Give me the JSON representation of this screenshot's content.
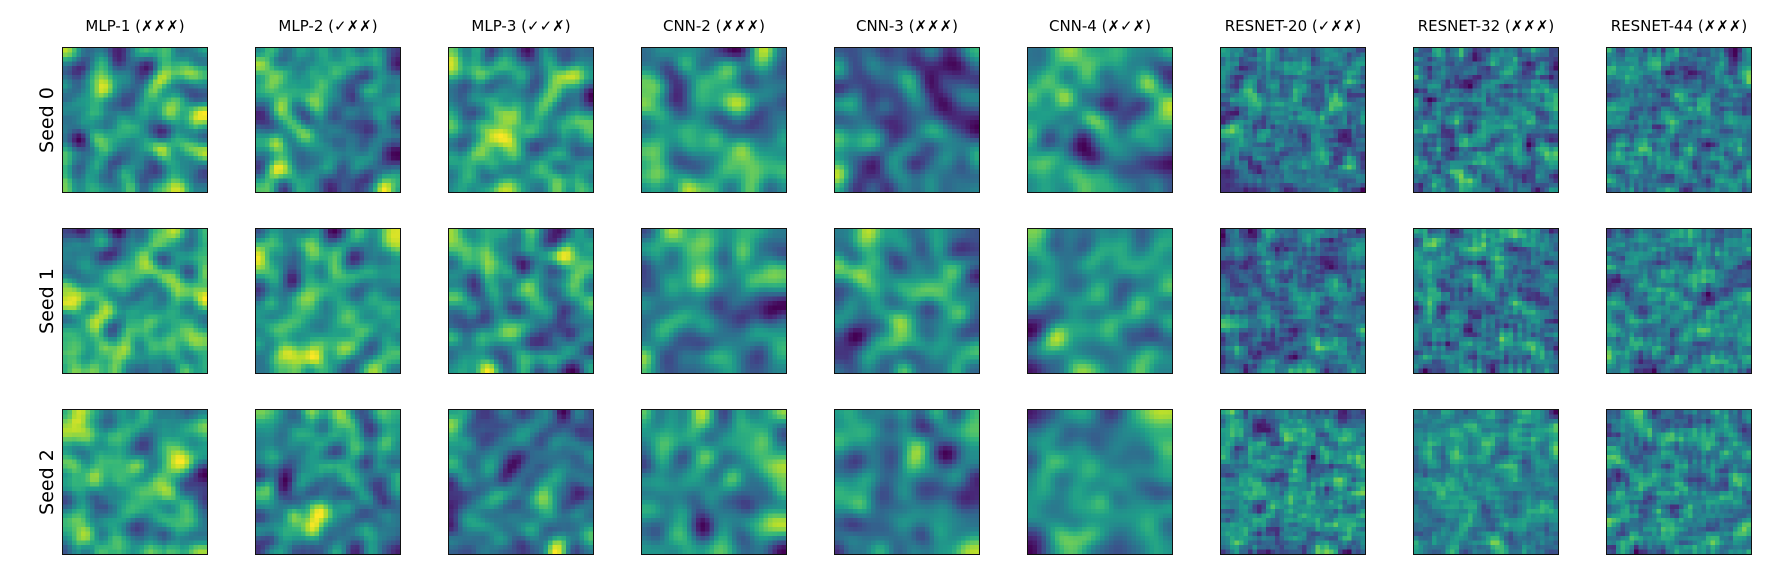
{
  "columns": [
    {
      "title": "MLP-1 (✗✗✗)"
    },
    {
      "title": "MLP-2 (✓✗✗)"
    },
    {
      "title": "MLP-3 (✓✓✗)"
    },
    {
      "title": "CNN-2 (✗✗✗)"
    },
    {
      "title": "CNN-3 (✗✗✗)"
    },
    {
      "title": "CNN-4 (✗✓✗)"
    },
    {
      "title": "RESNET-20 (✓✗✗)"
    },
    {
      "title": "RESNET-32 (✗✗✗)"
    },
    {
      "title": "RESNET-44 (✗✗✗)"
    }
  ],
  "rows": [
    {
      "label": "Seed 0"
    },
    {
      "label": "Seed 1"
    },
    {
      "label": "Seed 2"
    }
  ],
  "colormap": "viridis",
  "colors": {
    "background": "#ffffff",
    "frame": "#111111"
  }
}
